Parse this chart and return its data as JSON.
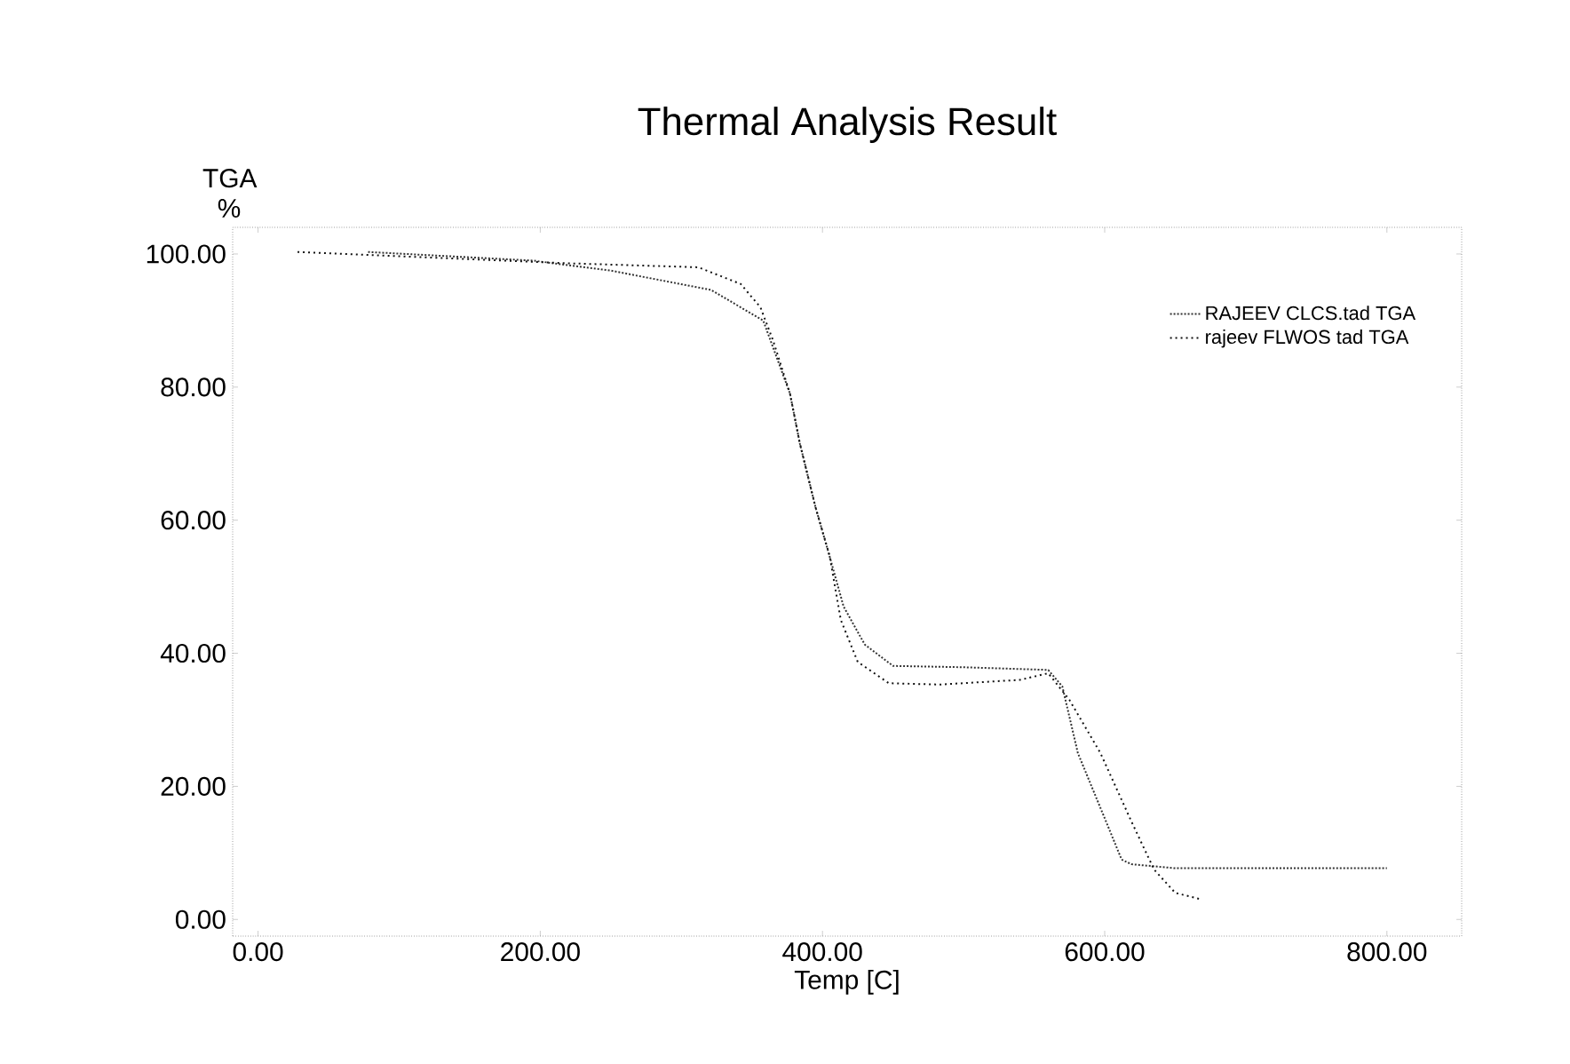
{
  "chart_data": {
    "type": "line",
    "title": "Thermal Analysis Result",
    "xlabel": "Temp  [C]",
    "ylabel": "TGA %",
    "xlim": [
      -18,
      853
    ],
    "ylim": [
      -2.5,
      104
    ],
    "xticks": [
      {
        "value": 0,
        "label": "0.00"
      },
      {
        "value": 200,
        "label": "200.00"
      },
      {
        "value": 400,
        "label": "400.00"
      },
      {
        "value": 600,
        "label": "600.00"
      },
      {
        "value": 800,
        "label": "800.00"
      }
    ],
    "yticks": [
      {
        "value": 0,
        "label": "0.00"
      },
      {
        "value": 20,
        "label": "20.00"
      },
      {
        "value": 40,
        "label": "40.00"
      },
      {
        "value": 60,
        "label": "60.00"
      },
      {
        "value": 80,
        "label": "80.00"
      },
      {
        "value": 100,
        "label": "100.00"
      }
    ],
    "grid": false,
    "legend": "top right",
    "marker": "none",
    "series": [
      {
        "name": "RAJEEV CLCS.tad  TGA",
        "color": "#333333",
        "line_style": "dotted",
        "x": [
          78,
          195,
          250,
          321,
          358,
          377,
          384,
          395,
          405,
          415,
          430,
          450,
          500,
          560,
          570,
          581,
          601,
          612,
          619,
          650,
          800
        ],
        "values": [
          100.3,
          99,
          97.5,
          94.6,
          90,
          79,
          71.5,
          62,
          54.6,
          47,
          41.3,
          38.1,
          37.9,
          37.5,
          35,
          25,
          14.7,
          9,
          8.3,
          7.7,
          7.7
        ]
      },
      {
        "name": "rajeev FLWOS tad  TGA",
        "color": "#111111",
        "line_style": "dashed",
        "x": [
          28,
          220,
          312,
          342,
          356,
          365,
          377,
          384,
          395,
          405,
          413,
          425,
          447,
          483,
          540,
          560,
          575,
          597,
          619,
          635,
          650,
          669
        ],
        "values": [
          100.3,
          98.6,
          98,
          95.5,
          92,
          87,
          79,
          71.5,
          62,
          54.7,
          45,
          38.7,
          35.5,
          35.3,
          36,
          37,
          33,
          25,
          14.7,
          7.5,
          4,
          3
        ]
      }
    ]
  }
}
